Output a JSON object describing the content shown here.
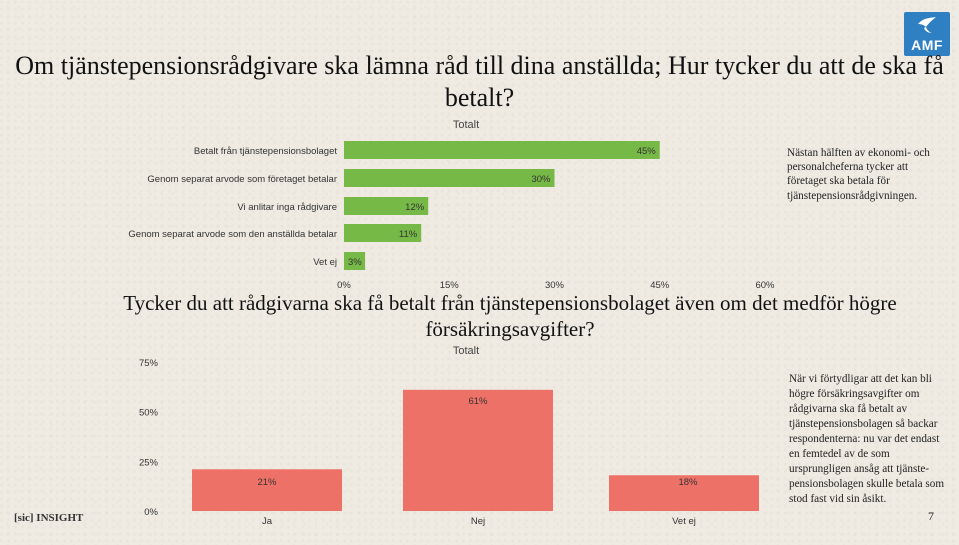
{
  "slide": {
    "title_main": "Om tjänstepensionsrådgivare ska lämna råd till dina anställda; Hur tycker du att de ska få betalt?",
    "title_second": "Tycker du att rådgivarna ska få betalt från tjänstepensionsbolaget även om det medför högre försäkringsavgifter?",
    "note_top": "Nästan hälften av ekonomi- och personalcheferna tycker att företaget ska betala för tjänstepensionsrådgivningen.",
    "note_bottom": "När vi förtydligar att det kan bli högre försäkringsavgifter om rådgivarna ska få betalt av tjänstepensionsbolagen så backar respondenterna: nu var det endast en femtedel av de som ursprungligen ansåg att tjänste-pensionsbolagen skulle betala som stod fast vid sin åsikt.",
    "brand": "[sic] INSIGHT",
    "logo_text": "AMF",
    "page_number": "7"
  },
  "colors": {
    "bar_green": "#76b947",
    "bar_red": "#ee7167",
    "background": "#efebe2"
  },
  "chart_data": [
    {
      "type": "bar",
      "orientation": "horizontal",
      "legend_label": "Totalt",
      "categories": [
        "Betalt från tjänstepensionsbolaget",
        "Genom separat arvode som företaget betalar",
        "Vi anlitar inga rådgivare",
        "Genom separat arvode som den anställda betalar",
        "Vet ej"
      ],
      "values": [
        45,
        30,
        12,
        11,
        3
      ],
      "data_labels": [
        "45%",
        "30%",
        "12%",
        "11%",
        "3%"
      ],
      "xlim": [
        0,
        60
      ],
      "xticks": [
        "0%",
        "15%",
        "30%",
        "45%",
        "60%"
      ],
      "grid": false
    },
    {
      "type": "bar",
      "orientation": "vertical",
      "legend_label": "Totalt",
      "categories": [
        "Ja",
        "Nej",
        "Vet ej"
      ],
      "values": [
        21,
        61,
        18
      ],
      "data_labels": [
        "21%",
        "61%",
        "18%"
      ],
      "ylim": [
        0,
        75
      ],
      "yticks": [
        "0%",
        "25%",
        "50%",
        "75%"
      ],
      "grid": false
    }
  ]
}
